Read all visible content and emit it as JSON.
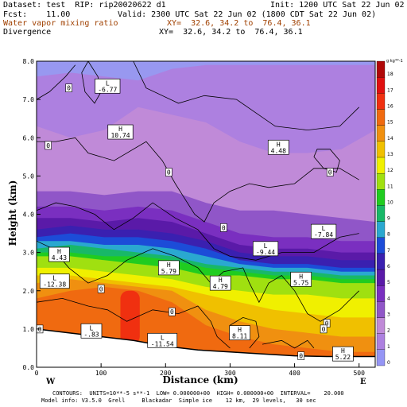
{
  "header": {
    "dataset_line": "Dataset: test  RIP: rip20020622 d1",
    "init_line": "Init: 1200 UTC Sat 22 Jun 02",
    "fcst_line": "Fcst:    11.00",
    "valid_line": "Valid: 2300 UTC Sat 22 Jun 02 (1800 CDT Sat 22 Jun 02)",
    "field1_name": "Water vapor mixing ratio",
    "field1_xy": "XY=  32.6, 34.2 to  76.4, 36.1",
    "field2_name": "Divergence",
    "field2_xy": "XY=  32.6, 34.2 to  76.4, 36.1"
  },
  "footer": {
    "contours_line": "CONTOURS:  UNITS=10**-5 s**-1  LOW= 0.000000+00  HIGH= 0.000000+00  INTERVAL=    20.000",
    "model_line": "Model info: V3.5.0  Grell     Blackadar  Simple ice    12 km,  29 levels,   30 sec"
  },
  "colors": {
    "levels": [
      "#9595f5",
      "#ad80e0",
      "#c08ad8",
      "#9056c8",
      "#7a2fc0",
      "#5a1aa8",
      "#3a20b0",
      "#1c4cd8",
      "#2aa8d0",
      "#18b868",
      "#20cc20",
      "#a0e010",
      "#f0f000",
      "#f0c000",
      "#f09010",
      "#f06a10",
      "#f03010",
      "#e01010",
      "#b00808"
    ],
    "panel_bg": "#9898f0"
  },
  "colorbar": {
    "unit_label": "g kg**-1",
    "ticks": [
      "0",
      "1",
      "2",
      "3",
      "4",
      "5",
      "6",
      "7",
      "8",
      "9",
      "10",
      "11",
      "12",
      "13",
      "14",
      "15",
      "16",
      "17",
      "18"
    ]
  },
  "chart_data": {
    "type": "heatmap",
    "xlabel": "Distance  (km)",
    "ylabel": "Height (km)",
    "xlim": [
      0,
      525
    ],
    "ylim": [
      0,
      8
    ],
    "xticks": [
      "0",
      "100",
      "200",
      "300",
      "400",
      "500"
    ],
    "yticks": [
      "0.0",
      "1.0",
      "2.0",
      "3.0",
      "4.0",
      "5.0",
      "6.0",
      "7.0",
      "8.0"
    ],
    "x_end_labels": {
      "left": "W",
      "right": "E"
    },
    "moisture_bands": [
      {
        "level": 1,
        "ytop": [
          7.6,
          7.7,
          7.6,
          7.5,
          7.8,
          7.9,
          7.9,
          7.9,
          7.9,
          7.9,
          7.9
        ]
      },
      {
        "level": 2,
        "ytop": [
          6.3,
          6.0,
          6.2,
          6.8,
          6.6,
          6.4,
          5.9,
          5.6,
          5.6,
          5.7,
          6.2
        ]
      },
      {
        "level": 3,
        "ytop": [
          4.6,
          4.6,
          4.5,
          4.6,
          4.6,
          4.3,
          4.1,
          4.1,
          4.0,
          3.9,
          3.8
        ]
      },
      {
        "level": 4,
        "ytop": [
          4.2,
          4.2,
          4.1,
          4.2,
          4.1,
          3.8,
          3.5,
          3.4,
          3.4,
          3.3,
          3.3
        ]
      },
      {
        "level": 5,
        "ytop": [
          3.9,
          3.9,
          3.8,
          3.9,
          3.8,
          3.5,
          3.2,
          3.1,
          3.1,
          3.0,
          3.0
        ]
      },
      {
        "level": 6,
        "ytop": [
          3.6,
          3.7,
          3.6,
          3.6,
          3.5,
          3.3,
          3.0,
          2.9,
          2.9,
          2.8,
          2.8
        ]
      },
      {
        "level": 7,
        "ytop": [
          3.4,
          3.5,
          3.4,
          3.4,
          3.3,
          3.1,
          2.8,
          2.7,
          2.7,
          2.6,
          2.6
        ]
      },
      {
        "level": 8,
        "ytop": [
          3.3,
          3.3,
          3.2,
          3.2,
          3.1,
          2.9,
          2.7,
          2.6,
          2.6,
          2.5,
          2.5
        ]
      },
      {
        "level": 9,
        "ytop": [
          3.1,
          3.2,
          3.1,
          3.0,
          2.9,
          2.7,
          2.6,
          2.5,
          2.5,
          2.4,
          2.4
        ]
      },
      {
        "level": 10,
        "ytop": [
          3.0,
          3.0,
          2.9,
          2.9,
          2.8,
          2.6,
          2.5,
          2.4,
          2.4,
          2.3,
          2.3
        ]
      },
      {
        "level": 11,
        "ytop": [
          2.9,
          2.9,
          2.8,
          2.7,
          2.6,
          2.4,
          2.4,
          2.3,
          2.3,
          2.2,
          2.2
        ]
      },
      {
        "level": 12,
        "ytop": [
          2.6,
          2.6,
          2.5,
          2.4,
          2.3,
          2.1,
          2.0,
          1.9,
          1.9,
          1.8,
          1.8
        ]
      },
      {
        "level": 13,
        "ytop": [
          2.4,
          2.4,
          2.3,
          2.2,
          2.1,
          1.9,
          1.7,
          1.5,
          1.4,
          1.3,
          1.3
        ]
      },
      {
        "level": 14,
        "ytop": [
          2.2,
          2.3,
          2.2,
          2.1,
          2.0,
          1.5,
          1.2,
          1.0,
          0.9,
          0.8,
          0.8
        ]
      },
      {
        "level": 15,
        "ytop": [
          1.8,
          2.0,
          2.1,
          2.0,
          1.7,
          1.1,
          0.8,
          0.6,
          0.5,
          0.4,
          0.4
        ]
      }
    ],
    "max_cell": {
      "level": 16,
      "x": [
        130,
        160
      ],
      "y": [
        0.6,
        2.0
      ]
    },
    "terrain": {
      "x": [
        0,
        50,
        100,
        150,
        200,
        250,
        300,
        350,
        400,
        450,
        500,
        525
      ],
      "y": [
        1.0,
        0.9,
        0.8,
        0.7,
        0.55,
        0.45,
        0.4,
        0.35,
        0.3,
        0.28,
        0.28,
        0.28
      ]
    },
    "extrema": [
      {
        "kind": "L",
        "value": "-6.77",
        "x": 110,
        "y": 7.35
      },
      {
        "kind": "H",
        "value": "10.74",
        "x": 130,
        "y": 6.15
      },
      {
        "kind": "H",
        "value": "4.48",
        "x": 375,
        "y": 5.75
      },
      {
        "kind": "L",
        "value": "-7.84",
        "x": 445,
        "y": 3.55
      },
      {
        "kind": "L",
        "value": "-9.44",
        "x": 355,
        "y": 3.1
      },
      {
        "kind": "H",
        "value": "4.43",
        "x": 35,
        "y": 2.95
      },
      {
        "kind": "L",
        "value": "-12.38",
        "x": 28,
        "y": 2.25
      },
      {
        "kind": "H",
        "value": "5.79",
        "x": 205,
        "y": 2.6
      },
      {
        "kind": "H",
        "value": "4.79",
        "x": 285,
        "y": 2.2
      },
      {
        "kind": "H",
        "value": "5.75",
        "x": 410,
        "y": 2.3
      },
      {
        "kind": "L",
        "value": "-.83",
        "x": 85,
        "y": 0.95
      },
      {
        "kind": "L",
        "value": "-11.54",
        "x": 195,
        "y": 0.7
      },
      {
        "kind": "H",
        "value": "8.11",
        "x": 315,
        "y": 0.9
      },
      {
        "kind": "H",
        "value": "5.22",
        "x": 475,
        "y": 0.35
      }
    ],
    "zero_labels": [
      {
        "x": 50,
        "y": 7.3
      },
      {
        "x": 18,
        "y": 5.8
      },
      {
        "x": 205,
        "y": 5.1
      },
      {
        "x": 455,
        "y": 5.1
      },
      {
        "x": 290,
        "y": 3.65
      },
      {
        "x": 100,
        "y": 2.05
      },
      {
        "x": 210,
        "y": 1.45
      },
      {
        "x": 450,
        "y": 1.15
      },
      {
        "x": 445,
        "y": 1.0
      },
      {
        "x": 5,
        "y": 1.0
      },
      {
        "x": 410,
        "y": 0.3
      }
    ],
    "contours": [
      [
        [
          0,
          7.0
        ],
        [
          20,
          7.2
        ],
        [
          45,
          7.6
        ],
        [
          60,
          7.9
        ]
      ],
      [
        [
          80,
          8.0
        ],
        [
          95,
          7.6
        ],
        [
          100,
          7.2
        ],
        [
          90,
          6.9
        ],
        [
          75,
          7.2
        ],
        [
          70,
          7.7
        ],
        [
          80,
          8.0
        ]
      ],
      [
        [
          150,
          8.0
        ],
        [
          170,
          7.3
        ],
        [
          220,
          6.9
        ],
        [
          260,
          7.1
        ],
        [
          310,
          7.0
        ],
        [
          370,
          6.3
        ],
        [
          420,
          6.2
        ],
        [
          470,
          6.3
        ],
        [
          500,
          6.8
        ]
      ],
      [
        [
          0,
          5.9
        ],
        [
          30,
          5.9
        ],
        [
          60,
          6.0
        ],
        [
          80,
          5.6
        ],
        [
          120,
          5.4
        ],
        [
          170,
          5.9
        ],
        [
          195,
          5.4
        ],
        [
          215,
          4.8
        ],
        [
          230,
          4.4
        ],
        [
          245,
          4.0
        ],
        [
          260,
          3.8
        ],
        [
          275,
          4.3
        ],
        [
          300,
          4.6
        ],
        [
          330,
          4.8
        ],
        [
          360,
          4.7
        ],
        [
          400,
          4.8
        ],
        [
          430,
          5.2
        ],
        [
          470,
          5.2
        ],
        [
          500,
          4.9
        ]
      ],
      [
        [
          430,
          5.5
        ],
        [
          445,
          5.2
        ],
        [
          465,
          5.1
        ],
        [
          470,
          5.4
        ],
        [
          455,
          5.7
        ],
        [
          435,
          5.7
        ],
        [
          430,
          5.5
        ]
      ],
      [
        [
          0,
          4.1
        ],
        [
          30,
          4.3
        ],
        [
          60,
          4.2
        ],
        [
          90,
          4.0
        ],
        [
          120,
          3.6
        ],
        [
          150,
          3.9
        ],
        [
          180,
          4.3
        ],
        [
          215,
          3.9
        ],
        [
          250,
          3.6
        ],
        [
          275,
          3.1
        ],
        [
          300,
          2.9
        ],
        [
          340,
          2.8
        ],
        [
          380,
          3.0
        ],
        [
          430,
          3.0
        ],
        [
          470,
          3.4
        ],
        [
          500,
          3.5
        ]
      ],
      [
        [
          0,
          3.3
        ],
        [
          25,
          3.1
        ],
        [
          50,
          2.6
        ],
        [
          80,
          2.2
        ],
        [
          110,
          2.4
        ],
        [
          140,
          2.8
        ],
        [
          180,
          3.1
        ],
        [
          215,
          2.9
        ],
        [
          250,
          2.6
        ],
        [
          270,
          2.2
        ],
        [
          290,
          2.5
        ],
        [
          320,
          2.6
        ],
        [
          330,
          2.2
        ],
        [
          345,
          1.7
        ],
        [
          360,
          2.2
        ],
        [
          380,
          2.4
        ],
        [
          400,
          2.0
        ],
        [
          420,
          1.4
        ],
        [
          440,
          1.2
        ],
        [
          470,
          1.5
        ],
        [
          500,
          2.0
        ]
      ],
      [
        [
          0,
          1.7
        ],
        [
          40,
          1.8
        ],
        [
          80,
          1.6
        ],
        [
          110,
          1.5
        ],
        [
          140,
          1.2
        ],
        [
          180,
          1.5
        ],
        [
          220,
          1.4
        ],
        [
          250,
          1.6
        ],
        [
          270,
          1.2
        ],
        [
          280,
          0.8
        ],
        [
          300,
          0.5
        ]
      ],
      [
        [
          300,
          1.1
        ],
        [
          320,
          1.3
        ],
        [
          340,
          1.2
        ],
        [
          345,
          0.8
        ],
        [
          330,
          0.5
        ]
      ],
      [
        [
          350,
          0.6
        ],
        [
          380,
          0.7
        ],
        [
          400,
          0.5
        ],
        [
          420,
          0.7
        ],
        [
          430,
          0.5
        ]
      ]
    ]
  }
}
